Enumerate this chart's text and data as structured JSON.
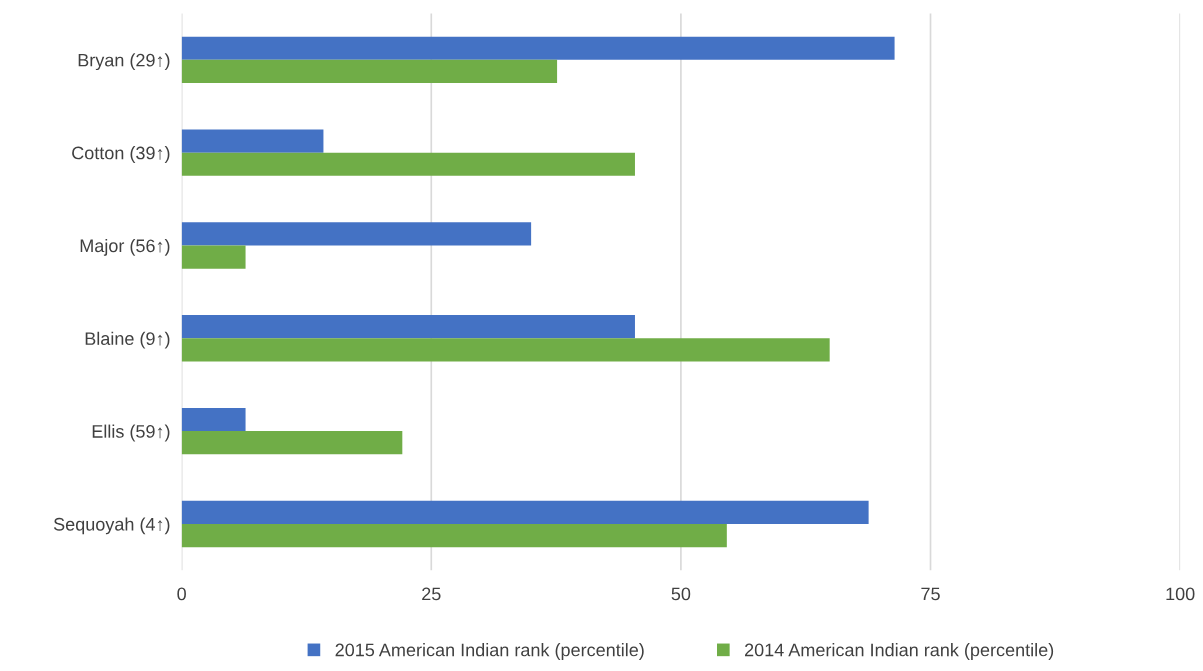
{
  "chart_data": {
    "type": "bar",
    "orientation": "horizontal",
    "categories": [
      "Bryan (29↑)",
      "Cotton (39↑)",
      "Major (56↑)",
      "Blaine (9↑)",
      "Ellis (59↑)",
      "Sequoyah (4↑)"
    ],
    "series": [
      {
        "name": "2015 American Indian rank (percentile)",
        "color": "#4472c4",
        "values": [
          71.4,
          14.2,
          35.0,
          45.4,
          6.4,
          68.8
        ]
      },
      {
        "name": "2014 American Indian rank (percentile)",
        "color": "#70ad47",
        "values": [
          37.6,
          45.4,
          6.4,
          64.9,
          22.1,
          54.6
        ]
      }
    ],
    "xlim": [
      0,
      100
    ],
    "xticks": [
      0,
      25,
      50,
      75,
      100
    ],
    "grid": "x",
    "legend": "bottom"
  }
}
